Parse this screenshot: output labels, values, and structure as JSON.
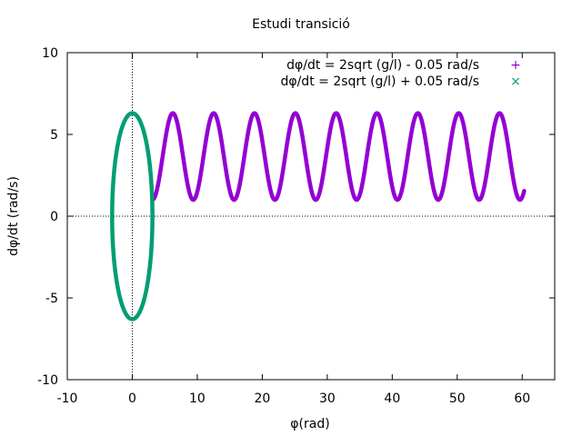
{
  "chart_data": {
    "type": "scatter",
    "title": "Estudi transició",
    "xlabel": "φ(rad)",
    "ylabel": "dφ/dt (rad/s)",
    "xlim": [
      -10,
      65
    ],
    "ylim": [
      -10,
      10
    ],
    "xticks": [
      -10,
      0,
      10,
      20,
      30,
      40,
      50,
      60
    ],
    "yticks": [
      -10,
      -5,
      0,
      5,
      10
    ],
    "zero_axes": true,
    "grid": false,
    "legend_position": "top-right",
    "series": [
      {
        "name": "dφ/dt = 2sqrt (g/l) - 0.05 rad/s",
        "color": "#9400d3",
        "marker": "+",
        "shape": "rotating",
        "x_start": 3.1,
        "x_end": 60.3,
        "x_period": 6.283,
        "y_min": 1.0,
        "y_max": 6.3
      },
      {
        "name": "dφ/dt = 2sqrt (g/l) + 0.05 rad/s",
        "color": "#009e73",
        "marker": "×",
        "shape": "oscillating",
        "x_amplitude": 3.1,
        "y_amplitude": 6.3
      }
    ]
  }
}
